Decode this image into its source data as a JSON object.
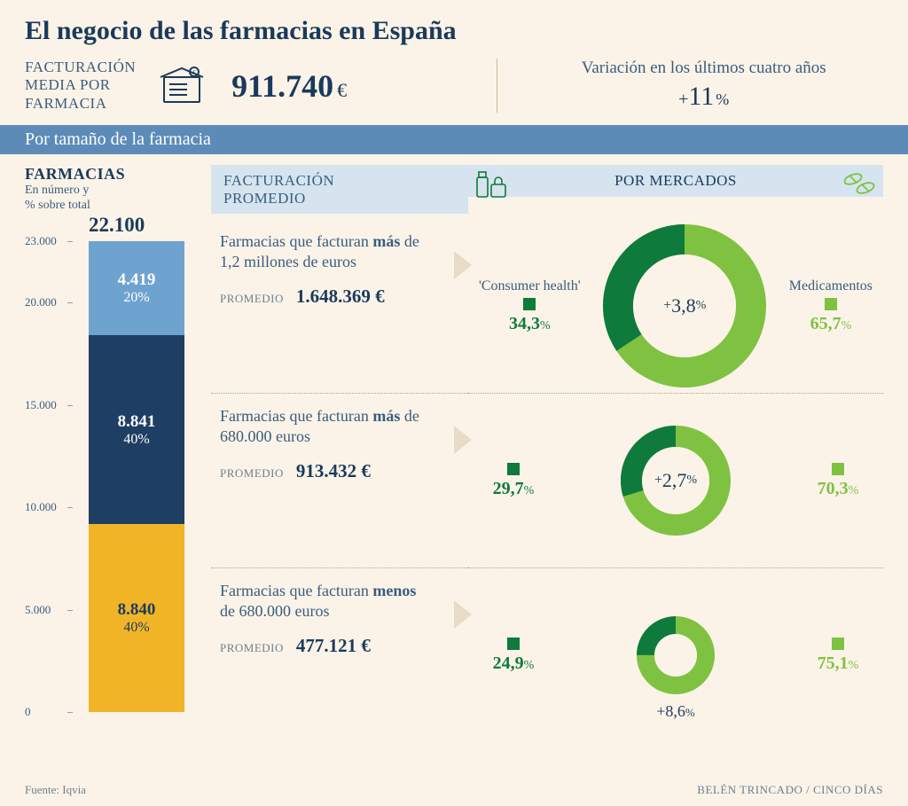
{
  "title": "El negocio de las farmacias en España",
  "top": {
    "fact_label_l1": "FACTURACIÓN",
    "fact_label_l2": "MEDIA POR",
    "fact_label_l3": "FARMACIA",
    "fact_value": "911.740",
    "fact_currency": "€",
    "variation_label": "Variación en los últimos cuatro años",
    "variation_plus": "+",
    "variation_value": "11",
    "variation_pct": "%"
  },
  "section_bar": "Por tamaño de la farmacia",
  "headers": {
    "farm_title": "FARMACIAS",
    "farm_sub_l1": "En número y",
    "farm_sub_l2": "% sobre total",
    "fact_title_l1": "FACTURACIÓN",
    "fact_title_l2": "PROMEDIO",
    "merc_title": "POR MERCADOS",
    "merc_left_label": "'Consumer health'",
    "merc_right_label": "Medicamentos"
  },
  "stacked_bar": {
    "total": "22.100",
    "axis": {
      "ticks": [
        "23.000",
        "20.000",
        "15.000",
        "10.000",
        "5.000",
        "0"
      ],
      "positions_pct": [
        0,
        13.0,
        34.8,
        56.5,
        78.3,
        100
      ]
    },
    "segments": [
      {
        "value": "4.419",
        "pct": "20%",
        "share": 20,
        "color": "#6fa3cf"
      },
      {
        "value": "8.841",
        "pct": "40%",
        "share": 40,
        "color": "#1e3e63"
      },
      {
        "value": "8.840",
        "pct": "40%",
        "share": 40,
        "color": "#f2b427"
      }
    ]
  },
  "rows": [
    {
      "desc_pre": "Farmacias que facturan ",
      "desc_bold": "más",
      "desc_post": " de 1,2 millones de euros",
      "prom_label": "PROMEDIO",
      "prom_value": "1.648.369 €",
      "consumer_pct": "34,3",
      "med_pct": "65,7",
      "consumer_val": 34.3,
      "med_val": 65.7,
      "growth_plus": "+",
      "growth_value": "3,8",
      "donut_radius": 92,
      "donut_thickness": 34,
      "center_inside": true
    },
    {
      "desc_pre": "Farmacias que facturan ",
      "desc_bold": "más",
      "desc_post": " de 680.000 euros",
      "prom_label": "PROMEDIO",
      "prom_value": "913.432 €",
      "consumer_pct": "29,7",
      "med_pct": "70,3",
      "consumer_val": 29.7,
      "med_val": 70.3,
      "growth_plus": "+",
      "growth_value": "2,7",
      "donut_radius": 62,
      "donut_thickness": 24,
      "center_inside": true
    },
    {
      "desc_pre": "Farmacias que facturan ",
      "desc_bold": "menos",
      "desc_post": " de 680.000 euros",
      "prom_label": "PROMEDIO",
      "prom_value": "477.121 €",
      "consumer_pct": "24,9",
      "med_pct": "75,1",
      "consumer_val": 24.9,
      "med_val": 75.1,
      "growth_plus": "+",
      "growth_value": "8,6",
      "donut_radius": 44,
      "donut_thickness": 20,
      "center_inside": false
    }
  ],
  "colors": {
    "consumer": "#0e7a3c",
    "medicamentos": "#7fc241",
    "background": "#fbf3e7",
    "header_box": "#d6e4ef",
    "section_bar": "#5c8bb8",
    "text_primary": "#1a3a5c",
    "text_secondary": "#385d81"
  },
  "footer": {
    "source": "Fuente: Iqvia",
    "credit": "BELÉN TRINCADO / CINCO DÍAS"
  }
}
